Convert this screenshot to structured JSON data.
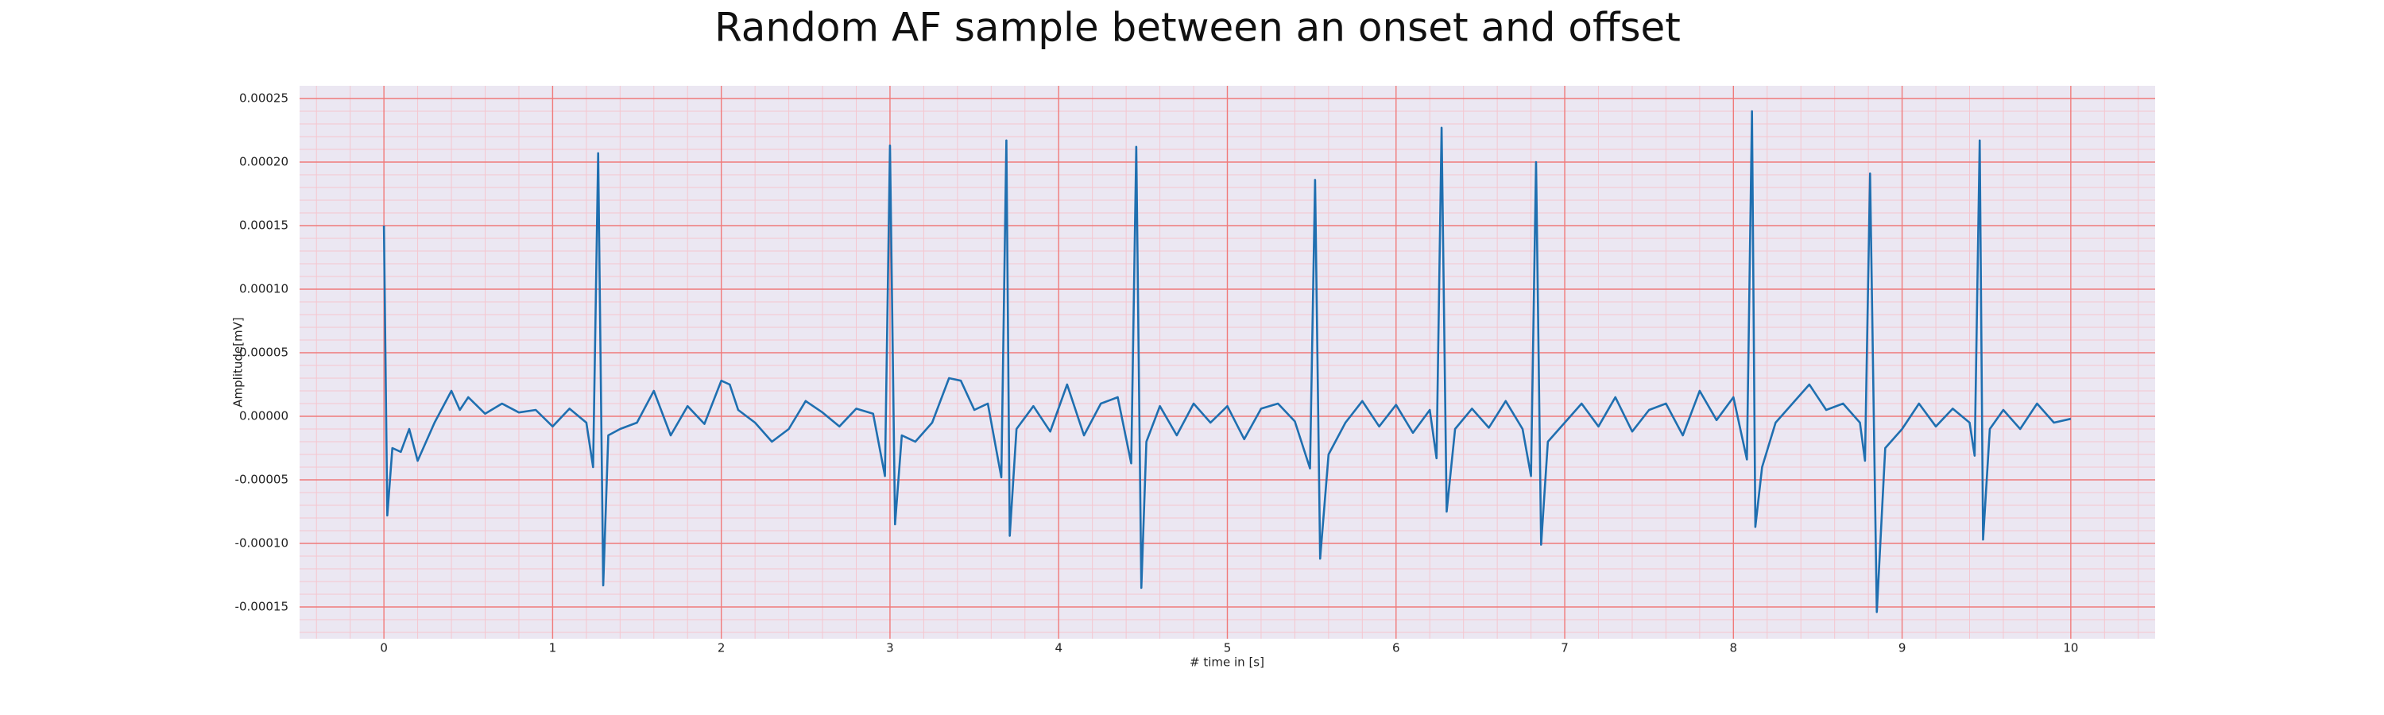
{
  "chart_data": {
    "type": "line",
    "title": "Random AF sample between an onset and offset",
    "x_label": "# time in [s]",
    "y_label": "Amplitude[mV]",
    "xlim": [
      -0.5,
      10.5
    ],
    "ylim": [
      -0.000175,
      0.00026
    ],
    "xticks": [
      0,
      1,
      2,
      3,
      4,
      5,
      6,
      7,
      8,
      9,
      10
    ],
    "yticks": [
      {
        "value": -0.00015,
        "label": "-0.00015"
      },
      {
        "value": -0.0001,
        "label": "-0.00010"
      },
      {
        "value": -5e-05,
        "label": "-0.00005"
      },
      {
        "value": 0,
        "label": "0.00000"
      },
      {
        "value": 5e-05,
        "label": "0.00005"
      },
      {
        "value": 0.0001,
        "label": "0.00010"
      },
      {
        "value": 0.00015,
        "label": "0.00015"
      },
      {
        "value": 0.0002,
        "label": "0.00020"
      },
      {
        "value": 0.00025,
        "label": "0.00025"
      }
    ],
    "grid": true,
    "minor_grid": true,
    "background": "#ebe7f2",
    "grid_color": "#f07a7a",
    "minor_grid_color": "#f5c6cf",
    "series": [
      {
        "color": "#1f6fb0",
        "x": [
          0,
          0.02,
          0.05,
          0.1,
          0.15,
          0.2,
          0.3,
          0.4,
          0.45,
          0.5,
          0.6,
          0.7,
          0.8,
          0.9,
          1.0,
          1.1,
          1.2,
          1.24,
          1.27,
          1.3,
          1.33,
          1.4,
          1.5,
          1.6,
          1.7,
          1.8,
          1.9,
          2.0,
          2.05,
          2.1,
          2.2,
          2.3,
          2.4,
          2.5,
          2.6,
          2.7,
          2.8,
          2.9,
          2.97,
          3.0,
          3.03,
          3.07,
          3.15,
          3.25,
          3.35,
          3.42,
          3.5,
          3.58,
          3.66,
          3.69,
          3.71,
          3.75,
          3.85,
          3.95,
          4.05,
          4.15,
          4.25,
          4.35,
          4.43,
          4.46,
          4.49,
          4.52,
          4.6,
          4.7,
          4.8,
          4.9,
          5.0,
          5.1,
          5.2,
          5.3,
          5.4,
          5.49,
          5.52,
          5.55,
          5.6,
          5.7,
          5.8,
          5.9,
          6.0,
          6.1,
          6.2,
          6.24,
          6.27,
          6.3,
          6.35,
          6.45,
          6.55,
          6.65,
          6.75,
          6.8,
          6.83,
          6.86,
          6.9,
          7.0,
          7.1,
          7.2,
          7.3,
          7.4,
          7.5,
          7.6,
          7.7,
          7.8,
          7.9,
          8.0,
          8.08,
          8.11,
          8.13,
          8.17,
          8.25,
          8.35,
          8.45,
          8.55,
          8.65,
          8.75,
          8.78,
          8.81,
          8.85,
          8.9,
          9.0,
          9.1,
          9.2,
          9.3,
          9.4,
          9.43,
          9.46,
          9.48,
          9.52,
          9.6,
          9.7,
          9.8,
          9.9,
          10.0
        ],
        "values": [
          0.00015,
          -7.8e-05,
          -2.5e-05,
          -2.8e-05,
          -1e-05,
          -3.5e-05,
          -5e-06,
          2e-05,
          5e-06,
          1.5e-05,
          2e-06,
          1e-05,
          3e-06,
          5e-06,
          -8e-06,
          6e-06,
          -5e-06,
          -4e-05,
          0.000207,
          -0.000133,
          -1.5e-05,
          -1e-05,
          -5e-06,
          2e-05,
          -1.5e-05,
          8e-06,
          -6e-06,
          2.8e-05,
          2.5e-05,
          5e-06,
          -5e-06,
          -2e-05,
          -1e-05,
          1.2e-05,
          3e-06,
          -8e-06,
          6e-06,
          2e-06,
          -4.7e-05,
          0.000213,
          -8.5e-05,
          -1.5e-05,
          -2e-05,
          -5e-06,
          3e-05,
          2.8e-05,
          5e-06,
          1e-05,
          -4.8e-05,
          0.000217,
          -9.4e-05,
          -1e-05,
          8e-06,
          -1.2e-05,
          2.5e-05,
          -1.5e-05,
          1e-05,
          1.5e-05,
          -3.7e-05,
          0.000212,
          -0.000135,
          -2e-05,
          8e-06,
          -1.5e-05,
          1e-05,
          -5e-06,
          8e-06,
          -1.8e-05,
          6e-06,
          1e-05,
          -4e-06,
          -4.1e-05,
          0.000186,
          -0.000112,
          -3e-05,
          -5e-06,
          1.2e-05,
          -8e-06,
          9e-06,
          -1.3e-05,
          5e-06,
          -3.3e-05,
          0.000227,
          -7.5e-05,
          -1e-05,
          6e-06,
          -9e-06,
          1.2e-05,
          -1e-05,
          -4.7e-05,
          0.0002,
          -0.000101,
          -2e-05,
          -5e-06,
          1e-05,
          -8e-06,
          1.5e-05,
          -1.2e-05,
          5e-06,
          1e-05,
          -1.5e-05,
          2e-05,
          -3e-06,
          1.5e-05,
          -3.4e-05,
          0.00024,
          -8.7e-05,
          -4e-05,
          -5e-06,
          1e-05,
          2.5e-05,
          5e-06,
          1e-05,
          -5e-06,
          -3.5e-05,
          0.000191,
          -0.000154,
          -2.5e-05,
          -1e-05,
          1e-05,
          -8e-06,
          6e-06,
          -5e-06,
          -3.1e-05,
          0.000217,
          -9.7e-05,
          -1e-05,
          5e-06,
          -1e-05,
          1e-05,
          -5e-06,
          -2e-06
        ]
      }
    ]
  }
}
